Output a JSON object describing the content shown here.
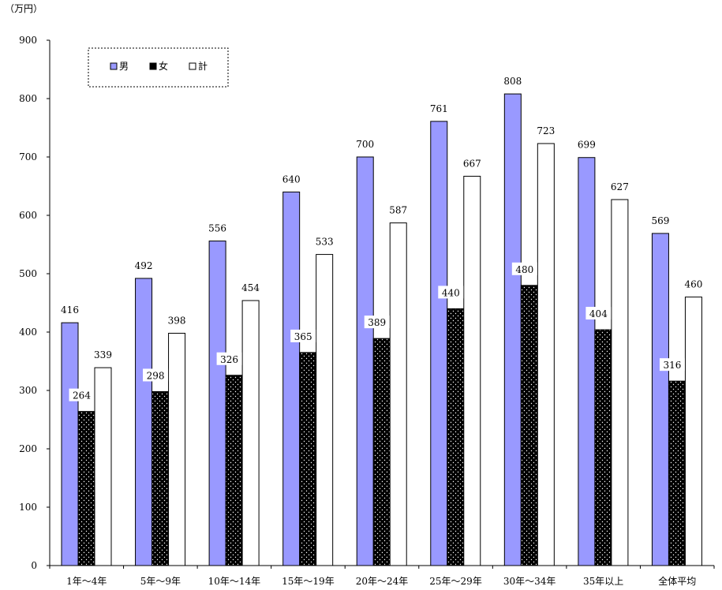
{
  "chart_data": {
    "type": "bar",
    "ylabel": "（万円）",
    "ylim": [
      0,
      900
    ],
    "yticks": [
      0,
      100,
      200,
      300,
      400,
      500,
      600,
      700,
      800,
      900
    ],
    "categories": [
      "1年～4年",
      "5年～9年",
      "10年～14年",
      "15年～19年",
      "20年～24年",
      "25年～29年",
      "30年～34年",
      "35年以上",
      "全体平均"
    ],
    "series": [
      {
        "name": "男",
        "values": [
          416,
          492,
          556,
          640,
          700,
          761,
          808,
          699,
          569
        ]
      },
      {
        "name": "女",
        "values": [
          264,
          298,
          326,
          365,
          389,
          440,
          480,
          404,
          316
        ]
      },
      {
        "name": "計",
        "values": [
          339,
          398,
          454,
          533,
          587,
          667,
          723,
          627,
          460
        ]
      }
    ],
    "legend_position": "top-left",
    "grid": false,
    "colors": {
      "male": "#9999ff",
      "female": "#000000",
      "total": "#ffffff"
    }
  }
}
